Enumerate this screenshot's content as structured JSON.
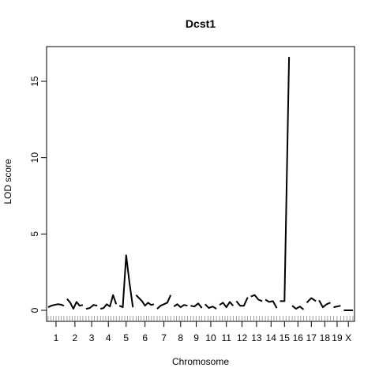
{
  "chart_data": {
    "type": "line",
    "title": "Dcst1",
    "xlabel": "Chromosome",
    "ylabel": "LOD score",
    "ylim": [
      -0.5,
      17
    ],
    "yticks": [
      0,
      5,
      10,
      15
    ],
    "grid": false,
    "legend": "none",
    "line_color": "#000000",
    "chromosomes": [
      {
        "label": "1",
        "lod": [
          0.2,
          0.3,
          0.35,
          0.4,
          0.38,
          0.3
        ]
      },
      {
        "label": "2",
        "lod": [
          0.75,
          0.5,
          0.1,
          0.55,
          0.3,
          0.35
        ]
      },
      {
        "label": "3",
        "lod": [
          0.1,
          0.15,
          0.35,
          0.3
        ]
      },
      {
        "label": "4",
        "lod": [
          0.1,
          0.15,
          0.4,
          0.25,
          1.0,
          0.4
        ]
      },
      {
        "label": "5",
        "lod": [
          0.3,
          0.2,
          3.6,
          1.8,
          0.2
        ]
      },
      {
        "label": "6",
        "lod": [
          1.0,
          0.8,
          0.6,
          0.3,
          0.5,
          0.35,
          0.4
        ]
      },
      {
        "label": "7",
        "lod": [
          0.1,
          0.3,
          0.4,
          0.5,
          1.0
        ]
      },
      {
        "label": "8",
        "lod": [
          0.25,
          0.4,
          0.2,
          0.35,
          0.3
        ]
      },
      {
        "label": "9",
        "lod": [
          0.3,
          0.25,
          0.45,
          0.15
        ]
      },
      {
        "label": "10",
        "lod": [
          0.4,
          0.15,
          0.25,
          0.1
        ]
      },
      {
        "label": "11",
        "lod": [
          0.35,
          0.5,
          0.2,
          0.55,
          0.3
        ]
      },
      {
        "label": "12",
        "lod": [
          0.6,
          0.3,
          0.3,
          0.85
        ]
      },
      {
        "label": "13",
        "lod": [
          0.9,
          1.0,
          0.7,
          0.6
        ]
      },
      {
        "label": "14",
        "lod": [
          0.7,
          0.55,
          0.6,
          0.15
        ]
      },
      {
        "label": "15",
        "lod": [
          0.6,
          0.6,
          16.6
        ]
      },
      {
        "label": "16",
        "lod": [
          0.3,
          0.1,
          0.25,
          0.05
        ]
      },
      {
        "label": "17",
        "lod": [
          0.5,
          0.8,
          0.6
        ]
      },
      {
        "label": "18",
        "lod": [
          0.65,
          0.2,
          0.4,
          0.5
        ]
      },
      {
        "label": "19",
        "lod": [
          0.2,
          0.3
        ]
      },
      {
        "label": "X",
        "lod": [
          0.0,
          0.0,
          0.0
        ]
      }
    ]
  }
}
